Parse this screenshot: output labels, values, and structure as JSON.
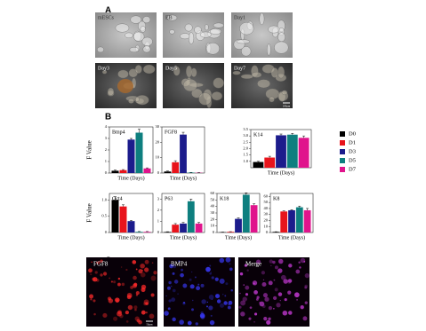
{
  "panels": [
    "A",
    "B",
    "C"
  ],
  "micrographs": [
    "mESCs",
    "EB",
    "Day1",
    "Day3",
    "Day5",
    "Day7"
  ],
  "scale_bar_a": "100μm",
  "fluorescence": [
    "FGF8",
    "BMP4",
    "Merge"
  ],
  "scale_bar_c": "50μm",
  "chart_data": [
    {
      "type": "bar",
      "title": "Bmp4",
      "y_label": "F Value",
      "x_label": "Time (Days)",
      "categories": [
        "D0",
        "D1",
        "D3",
        "D5",
        "D7"
      ],
      "colors": [
        "#000000",
        "#e8141c",
        "#1c1c8c",
        "#0e7f7f",
        "#e0148c"
      ],
      "values": [
        0.2,
        0.25,
        2.9,
        3.5,
        0.4
      ],
      "errors": [
        0.05,
        0.05,
        0.1,
        0.3,
        0.05
      ],
      "ylim": [
        0,
        4
      ],
      "yticks": [
        0,
        1,
        2,
        3,
        4
      ]
    },
    {
      "type": "bar",
      "title": "FGF8",
      "x_label": "Time (Days)",
      "categories": [
        "D0",
        "D1",
        "D3",
        "D5",
        "D7"
      ],
      "colors": [
        "#000000",
        "#e8141c",
        "#1c1c8c",
        "#0e7f7f",
        "#e0148c"
      ],
      "values": [
        1,
        7,
        25,
        0.3,
        0.2
      ],
      "errors": [
        0.3,
        1,
        1.5,
        0.1,
        0.1
      ],
      "ylim": [
        0,
        30
      ],
      "yticks": [
        0,
        10,
        20,
        30
      ]
    },
    {
      "type": "bar",
      "title": "K14",
      "x_label": "Time (Days)",
      "categories": [
        "D0",
        "D1",
        "D3",
        "D5",
        "D7"
      ],
      "colors": [
        "#000000",
        "#e8141c",
        "#1c1c8c",
        "#0e7f7f",
        "#e0148c"
      ],
      "values": [
        0.95,
        1.3,
        3.05,
        3.1,
        2.85
      ],
      "errors": [
        0.05,
        0.1,
        0.1,
        0.1,
        0.15
      ],
      "ylim": [
        0.5,
        3.5
      ],
      "yticks": [
        {
          "value": 1,
          "label": "1.0"
        },
        1.5,
        {
          "value": 2,
          "label": "2.0"
        },
        2.5,
        {
          "value": 3,
          "label": "3.0"
        },
        3.5
      ]
    },
    {
      "type": "bar",
      "title": "Oct4",
      "y_label": "F Value",
      "x_label": "Time (Days)",
      "categories": [
        "D0",
        "D1",
        "D3",
        "D5",
        "D7"
      ],
      "colors": [
        "#000000",
        "#e8141c",
        "#1c1c8c",
        "#0e7f7f",
        "#e0148c"
      ],
      "values": [
        1.0,
        0.8,
        0.35,
        0.02,
        0.02
      ],
      "errors": [
        0.1,
        0.05,
        0.02,
        0.01,
        0.01
      ],
      "ylim": [
        0,
        1.2
      ],
      "yticks": [
        0,
        0.5,
        {
          "value": 1,
          "label": "1.0"
        }
      ]
    },
    {
      "type": "bar",
      "title": "P63",
      "x_label": "Time (Days)",
      "categories": [
        "D0",
        "D1",
        "D3",
        "D5",
        "D7"
      ],
      "colors": [
        "#000000",
        "#e8141c",
        "#1c1c8c",
        "#0e7f7f",
        "#e0148c"
      ],
      "values": [
        0.05,
        0.7,
        0.8,
        2.8,
        0.8
      ],
      "errors": [
        0.02,
        0.1,
        0.1,
        0.2,
        0.1
      ],
      "ylim": [
        0,
        3.5
      ],
      "yticks": [
        0,
        1,
        2,
        3
      ]
    },
    {
      "type": "bar",
      "title": "K18",
      "x_label": "Time (Days)",
      "categories": [
        "D0",
        "D1",
        "D3",
        "D5",
        "D7"
      ],
      "colors": [
        "#000000",
        "#e8141c",
        "#1c1c8c",
        "#0e7f7f",
        "#e0148c"
      ],
      "values": [
        0.5,
        1,
        21,
        58,
        42
      ],
      "errors": [
        0.2,
        0.3,
        1.5,
        3,
        2
      ],
      "ylim": [
        0,
        60
      ],
      "yticks": [
        0,
        10,
        20,
        30,
        40,
        50,
        60
      ]
    },
    {
      "type": "bar",
      "title": "K8",
      "x_label": "Time (Days)",
      "categories": [
        "D0",
        "D1",
        "D3",
        "D5",
        "D7"
      ],
      "colors": [
        "#000000",
        "#e8141c",
        "#1c1c8c",
        "#0e7f7f",
        "#e0148c"
      ],
      "values": [
        1,
        35,
        37,
        42,
        37
      ],
      "errors": [
        0.3,
        1,
        1,
        2,
        3
      ],
      "ylim": [
        0,
        65
      ],
      "yticks": [
        0,
        10,
        20,
        30,
        40,
        50,
        60
      ]
    }
  ]
}
